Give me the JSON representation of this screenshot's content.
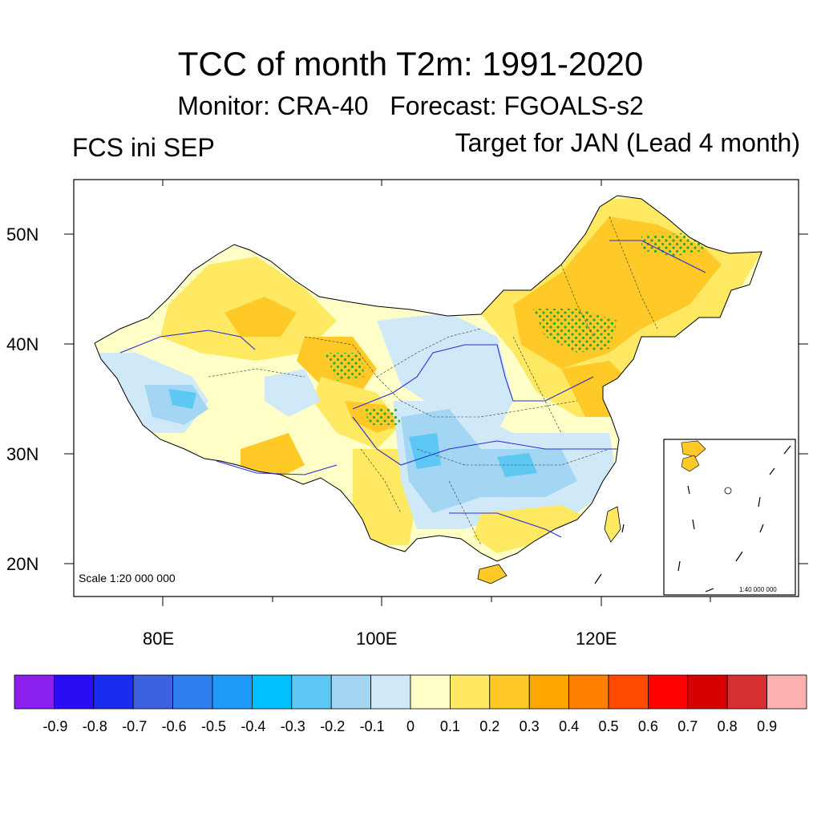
{
  "title": "TCC of month T2m: 1991-2020",
  "subtitle": "Monitor: CRA-40   Forecast: FGOALS-s2",
  "left_label": "FCS ini SEP",
  "right_label": "Target for JAN (Lead 4 month)",
  "scale_main": "Scale 1:20 000 000",
  "scale_inset": "1:40 000 000",
  "lat_labels": [
    "50N",
    "40N",
    "30N",
    "20N"
  ],
  "lon_labels": [
    "80E",
    "100E",
    "120E"
  ],
  "colorbar": {
    "labels": [
      "-0.9",
      "-0.8",
      "-0.7",
      "-0.6",
      "-0.5",
      "-0.4",
      "-0.3",
      "-0.2",
      "-0.1",
      "0",
      "0.1",
      "0.2",
      "0.3",
      "0.4",
      "0.5",
      "0.6",
      "0.7",
      "0.8",
      "0.9"
    ],
    "colors": [
      "#8a1ff0",
      "#2a0cf5",
      "#1a2cf0",
      "#3c62e0",
      "#2e7ef0",
      "#1e9af8",
      "#00c0ff",
      "#5ec8f5",
      "#a2d6f2",
      "#cfe9f8",
      "#ffffc8",
      "#ffe862",
      "#ffca28",
      "#ffa600",
      "#ff8000",
      "#ff4a00",
      "#ff0000",
      "#d60000",
      "#d83030",
      "#ffb0b0"
    ]
  },
  "map_colors": {
    "yellow_light": "#ffffc8",
    "yellow": "#ffe862",
    "orange": "#ffca28",
    "blue_light": "#cfe9f8",
    "blue": "#a2d6f2",
    "blue_mid": "#5ec8f5",
    "river": "#2b2bd9",
    "stipple": "#2aa82a"
  }
}
